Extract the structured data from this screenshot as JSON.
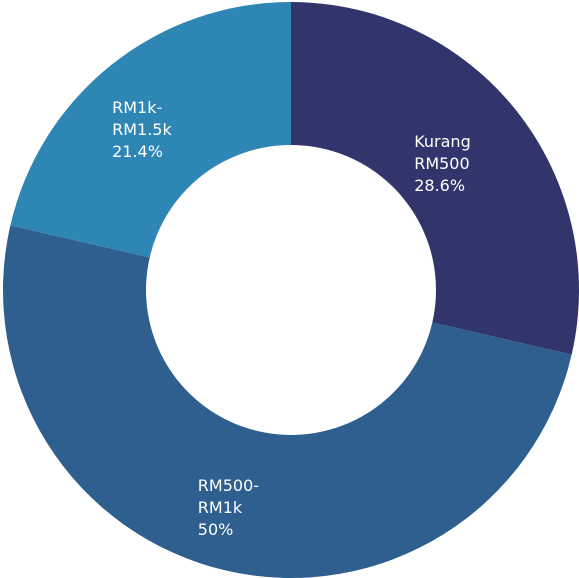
{
  "chart_data": {
    "type": "donut",
    "categories": [
      "Kurang RM500",
      "RM500-RM1k",
      "RM1k-RM1.5k"
    ],
    "values": [
      28.6,
      50,
      21.4
    ],
    "value_labels": [
      "28.6%",
      "50%",
      "21.4%"
    ],
    "colors": [
      "#32356b",
      "#2e5f8f",
      "#2e86b5"
    ]
  }
}
